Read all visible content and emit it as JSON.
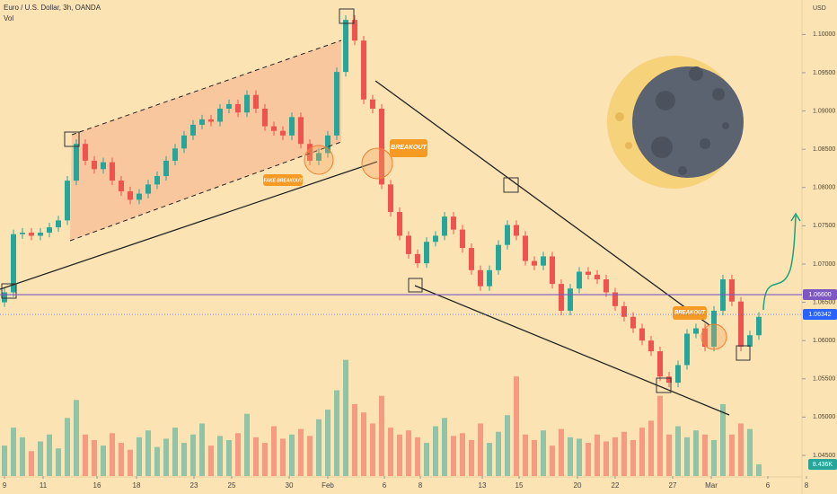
{
  "header": {
    "title": "Euro / U.S. Dollar, 3h, OANDA",
    "indicator": "Vol",
    "currency": "USD"
  },
  "chart_data": {
    "type": "candlestick",
    "x": [
      0.5,
      1.5,
      2.5,
      3.5,
      4.5,
      5.5,
      6.5,
      7.5,
      8.5,
      9.5,
      10.5,
      11.5,
      12.5,
      13.5,
      14.5,
      15.5,
      16.5,
      17.5,
      18.5,
      19.5,
      20.5,
      21.5,
      22.5,
      23.5,
      24.5,
      25.5,
      26.5,
      27.5,
      28.5,
      29.5,
      30.5,
      31.5,
      32.5,
      33.5,
      34.5,
      35.5,
      36.5,
      37.5,
      38.5,
      39.5,
      40.5,
      41.5,
      42.5,
      43.5,
      44.5,
      45.5,
      46.5,
      47.5,
      48.5,
      49.5,
      50.5,
      51.5,
      52.5,
      53.5,
      54.5,
      55.5,
      56.5,
      57.5,
      58.5,
      59.5,
      60.5,
      61.5,
      62.5,
      63.5,
      64.5,
      65.5,
      66.5,
      67.5,
      68.5,
      69.5,
      70.5,
      71.5,
      72.5,
      73.5,
      74.5,
      75.5,
      76.5,
      77.5,
      78.5,
      79.5,
      80.5,
      81.5,
      82.5,
      83.5,
      84.5
    ],
    "open": [
      1.065,
      1.0663,
      1.0739,
      1.0741,
      1.0737,
      1.0741,
      1.0748,
      1.0757,
      1.0809,
      1.0857,
      1.0835,
      1.0824,
      1.0833,
      1.0809,
      1.0795,
      1.0784,
      1.0792,
      1.0804,
      1.0815,
      1.0835,
      1.0851,
      1.0868,
      1.0882,
      1.0889,
      1.0886,
      1.0903,
      1.0909,
      1.0898,
      1.0921,
      1.0903,
      1.088,
      1.0874,
      1.0868,
      1.0892,
      1.0857,
      1.0835,
      1.0845,
      1.0868,
      1.0951,
      1.1019,
      1.0992,
      1.0915,
      1.0903,
      1.0804,
      1.0768,
      1.0737,
      1.0713,
      1.0701,
      1.0729,
      1.0737,
      1.0762,
      1.0745,
      1.0721,
      1.0692,
      1.0671,
      1.0692,
      1.0725,
      1.0751,
      1.0737,
      1.0704,
      1.0698,
      1.071,
      1.0674,
      1.0639,
      1.0668,
      1.069,
      1.0686,
      1.068,
      1.0663,
      1.0645,
      1.0631,
      1.0616,
      1.06,
      1.0586,
      1.0553,
      1.0545,
      1.0568,
      1.0609,
      1.0616,
      1.0592,
      1.0639,
      1.068,
      1.0651,
      1.0592,
      1.0607
    ],
    "high": [
      1.0669,
      1.0745,
      1.0747,
      1.0747,
      1.0747,
      1.0754,
      1.0763,
      1.0815,
      1.0863,
      1.0863,
      1.0841,
      1.0839,
      1.0839,
      1.0815,
      1.0801,
      1.0798,
      1.081,
      1.0821,
      1.0841,
      1.0857,
      1.0874,
      1.0888,
      1.0895,
      1.0895,
      1.0909,
      1.0915,
      1.0915,
      1.0927,
      1.0927,
      1.0909,
      1.0886,
      1.088,
      1.0898,
      1.0898,
      1.0863,
      1.0851,
      1.0874,
      1.0957,
      1.1025,
      1.1025,
      1.0998,
      1.0921,
      1.0909,
      1.081,
      1.0774,
      1.0743,
      1.0719,
      1.0735,
      1.0743,
      1.0768,
      1.0768,
      1.0751,
      1.0727,
      1.0698,
      1.0698,
      1.0731,
      1.0757,
      1.0757,
      1.0743,
      1.071,
      1.0716,
      1.0716,
      1.068,
      1.0674,
      1.0696,
      1.0696,
      1.0692,
      1.0686,
      1.0669,
      1.0651,
      1.0637,
      1.0622,
      1.0606,
      1.0592,
      1.0559,
      1.0574,
      1.0615,
      1.0622,
      1.0622,
      1.0645,
      1.0686,
      1.0686,
      1.0657,
      1.0613,
      1.0637
    ],
    "low": [
      1.0644,
      1.0657,
      1.0733,
      1.0731,
      1.0731,
      1.0735,
      1.0742,
      1.0751,
      1.0803,
      1.0829,
      1.0818,
      1.0818,
      1.0803,
      1.0789,
      1.0778,
      1.0778,
      1.0786,
      1.0798,
      1.0809,
      1.0829,
      1.0845,
      1.0862,
      1.0876,
      1.088,
      1.088,
      1.0897,
      1.0892,
      1.0892,
      1.0897,
      1.0874,
      1.0868,
      1.0862,
      1.0862,
      1.0851,
      1.0829,
      1.0829,
      1.0839,
      1.0862,
      1.0945,
      1.0986,
      1.0909,
      1.0897,
      1.0798,
      1.0762,
      1.0731,
      1.0707,
      1.0695,
      1.0695,
      1.0723,
      1.0731,
      1.0739,
      1.0715,
      1.0686,
      1.0665,
      1.0665,
      1.0686,
      1.0719,
      1.0731,
      1.0698,
      1.0692,
      1.0692,
      1.0668,
      1.0633,
      1.0633,
      1.0662,
      1.068,
      1.0674,
      1.0657,
      1.0639,
      1.0625,
      1.061,
      1.0594,
      1.058,
      1.0547,
      1.0539,
      1.0539,
      1.0562,
      1.0603,
      1.0586,
      1.0586,
      1.0633,
      1.0645,
      1.0586,
      1.0586,
      1.0601
    ],
    "close": [
      1.0663,
      1.0739,
      1.0741,
      1.0737,
      1.0741,
      1.0748,
      1.0757,
      1.0809,
      1.0857,
      1.0835,
      1.0824,
      1.0833,
      1.0809,
      1.0795,
      1.0784,
      1.0792,
      1.0804,
      1.0815,
      1.0835,
      1.0851,
      1.0868,
      1.0882,
      1.0889,
      1.0886,
      1.0903,
      1.0909,
      1.0898,
      1.0921,
      1.0903,
      1.088,
      1.0874,
      1.0868,
      1.0892,
      1.0857,
      1.0835,
      1.0845,
      1.0868,
      1.0951,
      1.1019,
      1.0992,
      1.0915,
      1.0903,
      1.0804,
      1.0768,
      1.0737,
      1.0713,
      1.0701,
      1.0729,
      1.0737,
      1.0762,
      1.0745,
      1.0721,
      1.0692,
      1.0671,
      1.0692,
      1.0725,
      1.0751,
      1.0737,
      1.0704,
      1.0698,
      1.071,
      1.0674,
      1.0639,
      1.0668,
      1.069,
      1.0686,
      1.068,
      1.0663,
      1.0645,
      1.0631,
      1.0616,
      1.06,
      1.0586,
      1.0553,
      1.0545,
      1.0568,
      1.0609,
      1.0616,
      1.0592,
      1.0639,
      1.068,
      1.0651,
      1.0592,
      1.0607,
      1.0631
    ],
    "volume": [
      22000,
      35000,
      28000,
      18000,
      25000,
      30000,
      20000,
      42000,
      55000,
      30000,
      26000,
      22000,
      31000,
      24000,
      19000,
      28000,
      33000,
      21000,
      27000,
      35000,
      24000,
      30000,
      38000,
      22000,
      29000,
      26000,
      31000,
      45000,
      28000,
      24000,
      36000,
      27000,
      30000,
      34000,
      29000,
      41000,
      48000,
      62000,
      84000,
      52000,
      46000,
      38000,
      58000,
      35000,
      30000,
      33000,
      28000,
      24000,
      36000,
      42000,
      29000,
      31000,
      26000,
      38000,
      24000,
      32000,
      44000,
      72000,
      30000,
      26000,
      33000,
      22000,
      34000,
      28000,
      27000,
      24000,
      30000,
      25000,
      28000,
      32000,
      26000,
      35000,
      40000,
      58000,
      30000,
      36000,
      28000,
      33000,
      30000,
      26000,
      52000,
      30000,
      38000,
      34000,
      8436
    ],
    "volume_lim": [
      0,
      100000
    ],
    "volume_label": {
      "value": 8436,
      "label": "8.436K"
    },
    "up_color": "#26a69a",
    "down_color": "#ef5350",
    "xlim": [
      0,
      89.3
    ],
    "xticks": [
      {
        "value": 0.5,
        "label": "9"
      },
      {
        "value": 4.8,
        "label": "11"
      },
      {
        "value": 10.8,
        "label": "16"
      },
      {
        "value": 15.2,
        "label": "18"
      },
      {
        "value": 21.6,
        "label": "23"
      },
      {
        "value": 25.8,
        "label": "25"
      },
      {
        "value": 32.2,
        "label": "30"
      },
      {
        "value": 36.5,
        "label": "Feb"
      },
      {
        "value": 42.8,
        "label": "6"
      },
      {
        "value": 46.8,
        "label": "8"
      },
      {
        "value": 53.7,
        "label": "13"
      },
      {
        "value": 57.8,
        "label": "15"
      },
      {
        "value": 64.3,
        "label": "20"
      },
      {
        "value": 68.5,
        "label": "22"
      },
      {
        "value": 74.9,
        "label": "27"
      },
      {
        "value": 79.2,
        "label": "Mar"
      },
      {
        "value": 85.5,
        "label": "6"
      },
      {
        "value": 89.8,
        "label": "8"
      }
    ],
    "ylim": [
      1.0423,
      1.1045
    ],
    "yticks": [
      {
        "value": 1.045,
        "label": "1.04500"
      },
      {
        "value": 1.05,
        "label": "1.05000"
      },
      {
        "value": 1.055,
        "label": "1.05500"
      },
      {
        "value": 1.06,
        "label": "1.06000"
      },
      {
        "value": 1.065,
        "label": "1.06500"
      },
      {
        "value": 1.07,
        "label": "1.07000"
      },
      {
        "value": 1.075,
        "label": "1.07500"
      },
      {
        "value": 1.08,
        "label": "1.08000"
      },
      {
        "value": 1.085,
        "label": "1.08500"
      },
      {
        "value": 1.09,
        "label": "1.09000"
      },
      {
        "value": 1.095,
        "label": "1.09500"
      },
      {
        "value": 1.1,
        "label": "1.10000"
      }
    ],
    "price_lines": [
      {
        "value": 1.066,
        "label": "1.06600",
        "color": "#7e57c2"
      },
      {
        "value": 1.06342,
        "label": "1.06342",
        "color": "#2962ff"
      }
    ],
    "annotations": [
      "FAKE BREAKOUT",
      "BREAKOUT",
      "BREAKOUT"
    ]
  }
}
